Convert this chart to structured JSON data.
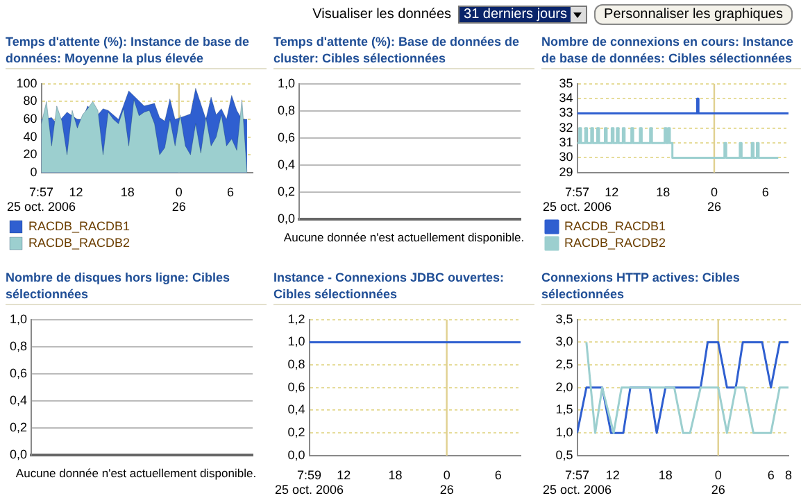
{
  "chart_data": [
    {
      "type": "other",
      "annotations": [
        "Visualiser les données",
        "31 derniers jours",
        "Personnaliser les graphiques"
      ]
    },
    {
      "type": "area",
      "title": "Temps d'attente (%): Instance de base de données: Moyenne la plus élevée",
      "x": [
        "2006-10-25T07:57",
        "2006-10-25T08:33",
        "2006-10-25T09:09",
        "2006-10-25T09:45",
        "2006-10-25T10:21",
        "2006-10-25T10:57",
        "2006-10-25T11:33",
        "2006-10-25T12:09",
        "2006-10-25T12:45",
        "2006-10-25T13:21",
        "2006-10-25T13:57",
        "2006-10-25T14:33",
        "2006-10-25T15:09",
        "2006-10-25T15:45",
        "2006-10-25T16:21",
        "2006-10-25T16:57",
        "2006-10-25T17:33",
        "2006-10-25T18:09",
        "2006-10-25T18:45",
        "2006-10-25T19:21",
        "2006-10-25T19:57",
        "2006-10-25T20:33",
        "2006-10-25T21:09",
        "2006-10-25T21:45",
        "2006-10-25T22:21",
        "2006-10-25T22:57",
        "2006-10-25T23:33",
        "2006-10-26T00:09",
        "2006-10-26T00:45",
        "2006-10-26T01:21",
        "2006-10-26T01:57",
        "2006-10-26T02:33",
        "2006-10-26T03:09",
        "2006-10-26T03:45",
        "2006-10-26T04:21",
        "2006-10-26T04:57",
        "2006-10-26T05:33",
        "2006-10-26T06:09",
        "2006-10-26T06:45",
        "2006-10-26T07:21",
        "2006-10-26T07:57"
      ],
      "series": [
        {
          "name": "RACDB_RACDB1",
          "color": "#2f5fd0",
          "values": [
            60,
            null,
            62,
            55,
            null,
            68,
            null,
            60,
            60,
            75,
            null,
            65,
            72,
            70,
            null,
            60,
            null,
            92,
            null,
            null,
            75,
            null,
            78,
            62,
            58,
            83,
            60,
            null,
            64,
            66,
            95,
            null,
            60,
            85,
            65,
            72,
            60,
            87,
            70,
            60,
            60
          ]
        },
        {
          "name": "RACDB_RACDB2",
          "color": "#9ccfcf",
          "values": [
            55,
            80,
            30,
            75,
            58,
            20,
            70,
            50,
            65,
            72,
            80,
            70,
            20,
            68,
            60,
            55,
            72,
            30,
            82,
            64,
            68,
            70,
            55,
            20,
            28,
            60,
            30,
            65,
            30,
            20,
            55,
            22,
            62,
            30,
            40,
            65,
            30,
            38,
            25,
            82,
            0
          ]
        }
      ],
      "xlim": [
        "2006-10-25T07:57",
        "2006-10-26T08:36"
      ],
      "xticks": [
        {
          "value": "2006-10-25T07:57",
          "label": "7:57\n25 oct. 2006"
        },
        {
          "value": "2006-10-25T12:00",
          "label": "12"
        },
        {
          "value": "2006-10-25T18:00",
          "label": "18"
        },
        {
          "value": "2006-10-26T00:00",
          "label": "0\n26"
        },
        {
          "value": "2006-10-26T06:00",
          "label": "6"
        }
      ],
      "ylim": [
        0,
        100
      ],
      "yticks": [
        0,
        20,
        40,
        60,
        80,
        100
      ],
      "grid": "y",
      "legend": "bottom left",
      "marker": "none",
      "ref_lines": [
        {
          "axis": "x",
          "value": "2006-10-26T00:00",
          "color": "#e0d090"
        }
      ]
    },
    {
      "type": "line",
      "categories": [
        null,
        null
      ],
      "values": [
        null,
        null
      ],
      "title": "Temps d'attente (%): Base de données de cluster: Cibles sélectionnées",
      "ylim": [
        0,
        1
      ],
      "yticks": [
        {
          "value": 0,
          "label": "0,0"
        },
        {
          "value": 0.2,
          "label": "0,2"
        },
        {
          "value": 0.4,
          "label": "0,4"
        },
        {
          "value": 0.6,
          "label": "0,6"
        },
        {
          "value": 0.8,
          "label": "0,8"
        },
        {
          "value": 1,
          "label": "1,0"
        }
      ],
      "grid": "y",
      "tick_labels": "y",
      "annotations": [
        "Aucune donnée n'est actuellement disponible."
      ]
    },
    {
      "type": "step",
      "title": "Nombre de connexions en cours: Instance de base de données: Cibles sélectionnées",
      "series": [
        {
          "name": "RACDB_RACDB1",
          "color": "#2f5fd0",
          "x": [
            "2006-10-25T07:57",
            "2006-10-25T22:00",
            "2006-10-25T22:09",
            "2006-10-26T08:42"
          ],
          "values": [
            33,
            34,
            33,
            33
          ]
        },
        {
          "name": "RACDB_RACDB2",
          "color": "#9ccfcf",
          "x": [
            "2006-10-25T07:57",
            "2006-10-25T08:12",
            "2006-10-25T08:24",
            "2006-10-25T08:54",
            "2006-10-25T09:06",
            "2006-10-25T09:36",
            "2006-10-25T09:48",
            "2006-10-25T10:18",
            "2006-10-25T10:30",
            "2006-10-25T11:12",
            "2006-10-25T11:24",
            "2006-10-25T12:00",
            "2006-10-25T12:12",
            "2006-10-25T12:36",
            "2006-10-25T12:48",
            "2006-10-25T13:18",
            "2006-10-25T13:30",
            "2006-10-25T14:18",
            "2006-10-25T14:30",
            "2006-10-25T15:18",
            "2006-10-25T15:30",
            "2006-10-25T16:30",
            "2006-10-25T16:42",
            "2006-10-25T18:12",
            "2006-10-25T18:24",
            "2006-10-25T18:36",
            "2006-10-25T18:48",
            "2006-10-25T19:06",
            "2006-10-25T19:30",
            "2006-10-26T01:12",
            "2006-10-26T01:24",
            "2006-10-26T03:00",
            "2006-10-26T03:12",
            "2006-10-26T04:24",
            "2006-10-26T04:36",
            "2006-10-26T05:00",
            "2006-10-26T05:12",
            "2006-10-26T07:30"
          ],
          "values": [
            31,
            32,
            31,
            32,
            31,
            32,
            31,
            32,
            31,
            32,
            31,
            32,
            31,
            32,
            31,
            32,
            31,
            32,
            31,
            32,
            31,
            32,
            31,
            32,
            31,
            32,
            31,
            30,
            30,
            31,
            30,
            31,
            30,
            31,
            30,
            31,
            30,
            30
          ]
        }
      ],
      "xlim": [
        "2006-10-25T07:57",
        "2006-10-26T08:42"
      ],
      "xticks": [
        {
          "value": "2006-10-25T07:57",
          "label": "7:57\n25 oct. 2006"
        },
        {
          "value": "2006-10-25T12:00",
          "label": "12"
        },
        {
          "value": "2006-10-25T18:00",
          "label": "18"
        },
        {
          "value": "2006-10-26T00:00",
          "label": "0\n26"
        },
        {
          "value": "2006-10-26T06:00",
          "label": "6"
        }
      ],
      "ylim": [
        29,
        35
      ],
      "yticks": [
        29,
        30,
        31,
        32,
        33,
        34,
        35
      ],
      "grid": "y",
      "legend": "bottom left",
      "marker": "none",
      "ref_lines": [
        {
          "axis": "x",
          "value": "2006-10-26T00:00",
          "color": "#e0d090"
        }
      ]
    },
    {
      "type": "line",
      "categories": [
        null,
        null
      ],
      "values": [
        null,
        null
      ],
      "title": "Nombre de disques hors ligne: Cibles sélectionnées",
      "ylim": [
        0,
        1
      ],
      "yticks": [
        {
          "value": 0,
          "label": "0,0"
        },
        {
          "value": 0.2,
          "label": "0,2"
        },
        {
          "value": 0.4,
          "label": "0,4"
        },
        {
          "value": 0.6,
          "label": "0,6"
        },
        {
          "value": 0.8,
          "label": "0,8"
        },
        {
          "value": 1,
          "label": "1,0"
        }
      ],
      "grid": "y",
      "tick_labels": "y",
      "annotations": [
        "Aucune donnée n'est actuellement disponible."
      ]
    },
    {
      "type": "line",
      "title": "Instance - Connexions JDBC ouvertes: Cibles sélectionnées",
      "series": [
        {
          "color": "#2f5fd0",
          "x": [
            "2006-10-25T07:59",
            "2006-10-26T08:36"
          ],
          "values": [
            1,
            1
          ]
        }
      ],
      "xlim": [
        "2006-10-25T07:59",
        "2006-10-26T08:36"
      ],
      "xticks": [
        {
          "value": "2006-10-25T07:59",
          "label": "7:59\n25 oct. 2006"
        },
        {
          "value": "2006-10-25T12:00",
          "label": "12"
        },
        {
          "value": "2006-10-25T18:00",
          "label": "18"
        },
        {
          "value": "2006-10-26T00:00",
          "label": "0\n26"
        },
        {
          "value": "2006-10-26T06:00",
          "label": "6"
        }
      ],
      "ylim": [
        0,
        1.2
      ],
      "yticks": [
        {
          "value": 0,
          "label": "0,0"
        },
        {
          "value": 0.2,
          "label": "0,2"
        },
        {
          "value": 0.4,
          "label": "0,4"
        },
        {
          "value": 0.6,
          "label": "0,6"
        },
        {
          "value": 0.8,
          "label": "0,8"
        },
        {
          "value": 1,
          "label": "1,0"
        },
        {
          "value": 1.2,
          "label": "1,2"
        }
      ],
      "grid": "y",
      "marker": "none",
      "ref_lines": [
        {
          "axis": "x",
          "value": "2006-10-26T00:00",
          "color": "#e0d090"
        }
      ]
    },
    {
      "type": "line",
      "title": "Connexions HTTP actives: Cibles sélectionnées",
      "series": [
        {
          "color": "#2f5fd0",
          "x": [
            "2006-10-25T07:57",
            "2006-10-25T09:00",
            "2006-10-25T10:48",
            "2006-10-25T11:48",
            "2006-10-25T13:12",
            "2006-10-25T14:00",
            "2006-10-25T16:12",
            "2006-10-25T17:00",
            "2006-10-25T18:00",
            "2006-10-25T22:00",
            "2006-10-25T22:48",
            "2006-10-26T00:00",
            "2006-10-26T01:00",
            "2006-10-26T02:00",
            "2006-10-26T02:48",
            "2006-10-26T05:00",
            "2006-10-26T06:00",
            "2006-10-26T07:00",
            "2006-10-26T08:00"
          ],
          "values": [
            1,
            2,
            2,
            1,
            1,
            2,
            2,
            1,
            2,
            2,
            3,
            3,
            2,
            2,
            3,
            3,
            2,
            3,
            3
          ]
        },
        {
          "color": "#9ccfcf",
          "x": [
            "2006-10-25T09:00",
            "2006-10-25T10:00",
            "2006-10-25T10:48",
            "2006-10-25T12:06",
            "2006-10-25T13:00",
            "2006-10-25T19:00",
            "2006-10-25T20:00",
            "2006-10-25T20:48",
            "2006-10-25T22:00",
            "2006-10-26T00:00",
            "2006-10-26T01:00",
            "2006-10-26T02:00",
            "2006-10-26T03:00",
            "2006-10-26T04:00",
            "2006-10-26T06:00",
            "2006-10-26T07:00",
            "2006-10-26T08:00"
          ],
          "values": [
            3,
            1,
            2,
            1,
            2,
            2,
            1,
            1,
            2,
            2,
            1,
            2,
            2,
            1,
            1,
            2,
            2
          ]
        }
      ],
      "xlim": [
        "2006-10-25T07:57",
        "2006-10-26T08:00"
      ],
      "xticks": [
        {
          "value": "2006-10-25T07:57",
          "label": "7:57\n25 oct. 2006"
        },
        {
          "value": "2006-10-25T12:00",
          "label": "12"
        },
        {
          "value": "2006-10-25T18:00",
          "label": "18"
        },
        {
          "value": "2006-10-26T00:00",
          "label": "0\n26"
        },
        {
          "value": "2006-10-26T06:00",
          "label": "6"
        },
        {
          "value": "2006-10-26T08:00",
          "label": "8"
        }
      ],
      "ylim": [
        0.5,
        3.5
      ],
      "yticks": [
        {
          "value": 0.5,
          "label": "0,5"
        },
        {
          "value": 1,
          "label": "1,0"
        },
        {
          "value": 1.5,
          "label": "1,5"
        },
        {
          "value": 2,
          "label": "2,0"
        },
        {
          "value": 2.5,
          "label": "2,5"
        },
        {
          "value": 3,
          "label": "3,0"
        },
        {
          "value": 3.5,
          "label": "3,5"
        }
      ],
      "grid": "y",
      "marker": "none",
      "ref_lines": [
        {
          "axis": "x",
          "value": "2006-10-26T00:00",
          "color": "#e0d090"
        }
      ]
    }
  ]
}
